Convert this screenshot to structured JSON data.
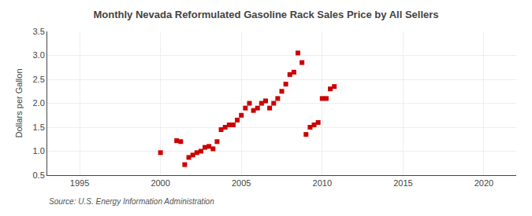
{
  "chart_data": {
    "type": "scatter",
    "title": "Monthly Nevada Reformulated Gasoline Rack Sales Price by All Sellers",
    "ylabel": "Dollars per Gallon",
    "source": "Source: U.S. Energy Information Administration",
    "color": "#cc0000",
    "marker": "square",
    "grid": true,
    "xlim": [
      1993,
      2022
    ],
    "ylim": [
      0.5,
      3.5
    ],
    "xticks": [
      1995,
      2000,
      2005,
      2010,
      2015,
      2020
    ],
    "yticks": [
      0.5,
      {
        "value": 1.0,
        "label": "1.0"
      },
      1.5,
      {
        "value": 2.0,
        "label": "2.0"
      },
      2.5,
      {
        "value": 3.0,
        "label": "3.0"
      },
      3.5
    ],
    "x": [
      2000.0,
      2001.0,
      2001.25,
      2001.5,
      2001.75,
      2002.0,
      2002.25,
      2002.5,
      2002.75,
      2003.0,
      2003.25,
      2003.5,
      2003.75,
      2004.0,
      2004.25,
      2004.5,
      2004.75,
      2005.0,
      2005.25,
      2005.5,
      2005.75,
      2006.0,
      2006.25,
      2006.5,
      2006.75,
      2007.0,
      2007.25,
      2007.5,
      2007.75,
      2008.0,
      2008.25,
      2008.5,
      2008.75,
      2009.0,
      2009.25,
      2009.5,
      2009.75,
      2010.0,
      2010.25,
      2010.5,
      2010.75
    ],
    "values": [
      0.97,
      1.22,
      1.2,
      0.72,
      0.87,
      0.92,
      0.97,
      1.0,
      1.08,
      1.1,
      1.05,
      1.2,
      1.45,
      1.5,
      1.55,
      1.55,
      1.65,
      1.75,
      1.9,
      2.0,
      1.85,
      1.9,
      2.0,
      2.05,
      1.9,
      2.0,
      2.1,
      2.25,
      2.4,
      2.6,
      2.65,
      3.05,
      2.85,
      1.35,
      1.5,
      1.55,
      1.6,
      2.1,
      2.1,
      2.3,
      2.35
    ]
  }
}
